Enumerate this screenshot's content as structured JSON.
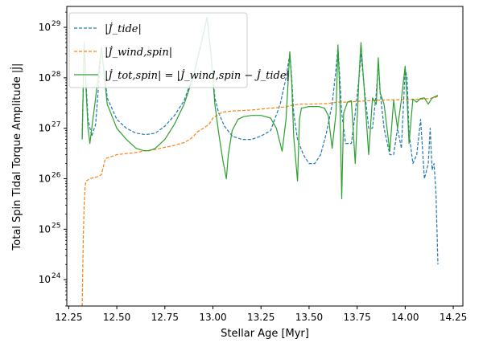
{
  "chart_data": {
    "type": "line",
    "xlabel": "Stellar Age [Myr]",
    "ylabel": "Total Spin Tidal Torque Amplitude |J̇|",
    "xlim": [
      12.24,
      14.3
    ],
    "ylim": [
      3e+23,
      2.6e+29
    ],
    "yscale": "log",
    "grid": false,
    "legend_position": "top-left",
    "xticks": [
      {
        "value": 12.25,
        "label": "12.25"
      },
      {
        "value": 12.5,
        "label": "12.50"
      },
      {
        "value": 12.75,
        "label": "12.75"
      },
      {
        "value": 13.0,
        "label": "13.00"
      },
      {
        "value": 13.25,
        "label": "13.25"
      },
      {
        "value": 13.5,
        "label": "13.50"
      },
      {
        "value": 13.75,
        "label": "13.75"
      },
      {
        "value": 14.0,
        "label": "14.00"
      },
      {
        "value": 14.25,
        "label": "14.25"
      }
    ],
    "yticks": [
      {
        "value": 1e+24,
        "base": "10",
        "exp": "24"
      },
      {
        "value": 1e+25,
        "base": "10",
        "exp": "25"
      },
      {
        "value": 1e+26,
        "base": "10",
        "exp": "26"
      },
      {
        "value": 1e+27,
        "base": "10",
        "exp": "27"
      },
      {
        "value": 1e+28,
        "base": "10",
        "exp": "28"
      },
      {
        "value": 1e+29,
        "base": "10",
        "exp": "29"
      }
    ],
    "series": [
      {
        "name": "|J̇_tide|",
        "color": "#1f77b4",
        "dash": "dashed",
        "x": [
          12.32,
          12.33,
          12.34,
          12.35,
          12.37,
          12.39,
          12.42,
          12.45,
          12.5,
          12.55,
          12.6,
          12.65,
          12.7,
          12.75,
          12.8,
          12.85,
          12.9,
          12.94,
          12.97,
          12.99,
          13.01,
          13.03,
          13.06,
          13.1,
          13.15,
          13.2,
          13.25,
          13.3,
          13.35,
          13.38,
          13.4,
          13.41,
          13.42,
          13.44,
          13.47,
          13.5,
          13.53,
          13.56,
          13.59,
          13.62,
          13.64,
          13.65,
          13.66,
          13.67,
          13.69,
          13.72,
          13.74,
          13.76,
          13.77,
          13.79,
          13.81,
          13.83,
          13.85,
          13.86,
          13.87,
          13.89,
          13.92,
          13.94,
          13.96,
          13.98,
          14.0,
          14.01,
          14.02,
          14.04,
          14.06,
          14.08,
          14.1,
          14.12,
          14.13,
          14.14,
          14.15,
          14.16,
          14.17
        ],
        "y": [
          7e+26,
          5e+28,
          8e+27,
          1.5e+27,
          7e+26,
          1.2e+27,
          4e+28,
          4e+27,
          1.5e+27,
          1e+27,
          8e+26,
          7.5e+26,
          8e+26,
          1.1e+27,
          1.8e+27,
          3.5e+27,
          1.2e+28,
          5e+28,
          1.6e+29,
          3e+28,
          4e+27,
          2e+27,
          1.1e+27,
          7e+26,
          6e+26,
          6e+26,
          7e+26,
          9e+26,
          3e+27,
          1e+28,
          3e+28,
          1e+28,
          2e+27,
          6e+26,
          3e+26,
          2e+26,
          2e+26,
          3e+26,
          8e+26,
          3e+27,
          1.5e+28,
          4e+28,
          1e+28,
          2e+27,
          5e+26,
          5e+26,
          2e+27,
          1e+28,
          3e+28,
          5e+27,
          1e+27,
          1e+27,
          5e+27,
          2e+28,
          5e+27,
          1e+27,
          3e+26,
          3e+26,
          1e+27,
          4e+26,
          1.5e+28,
          1e+28,
          8e+26,
          2e+26,
          3e+26,
          1.5e+27,
          1e+26,
          2e+26,
          1e+27,
          1.5e+26,
          2e+26,
          5e+25,
          2e+24
        ]
      },
      {
        "name": "|J̇_wind,spin|",
        "color": "#ff7f0e",
        "dash": "dashed",
        "x": [
          12.32,
          12.325,
          12.33,
          12.335,
          12.34,
          12.36,
          12.38,
          12.4,
          12.42,
          12.44,
          12.5,
          12.6,
          12.65,
          12.7,
          12.75,
          12.8,
          12.85,
          12.88,
          12.9,
          12.92,
          12.95,
          12.98,
          13.0,
          13.05,
          13.1,
          13.2,
          13.25,
          13.3,
          13.35,
          13.38,
          13.4,
          13.45,
          13.5,
          13.6,
          13.65,
          13.7,
          13.75,
          13.8,
          13.85,
          13.9,
          14.0,
          14.05,
          14.1,
          14.15,
          14.17
        ],
        "y": [
          3e+23,
          5e+24,
          3e+25,
          7e+25,
          9e+25,
          1e+26,
          1.05e+26,
          1.1e+26,
          1.2e+26,
          2.5e+26,
          3e+26,
          3.3e+26,
          3.6e+26,
          3.8e+26,
          4.2e+26,
          4.6e+26,
          5.2e+26,
          6e+26,
          7e+26,
          8.5e+26,
          1e+27,
          1.2e+27,
          1.6e+27,
          2.1e+27,
          2.2e+27,
          2.3e+27,
          2.4e+27,
          2.5e+27,
          2.6e+27,
          2.65e+27,
          2.8e+27,
          3e+27,
          3e+27,
          3.1e+27,
          3.3e+27,
          3.3e+27,
          3.4e+27,
          3.5e+27,
          3.6e+27,
          3.65e+27,
          3.7e+27,
          3.75e+27,
          3.8e+27,
          4e+27,
          4.3e+27
        ]
      },
      {
        "name": "|J̇_tot,spin| = |J̇_wind,spin − J̇_tide|",
        "color": "#2ca02c",
        "dash": "solid",
        "x": [
          12.32,
          12.33,
          12.34,
          12.35,
          12.36,
          12.37,
          12.39,
          12.42,
          12.45,
          12.5,
          12.55,
          12.6,
          12.64,
          12.67,
          12.7,
          12.75,
          12.8,
          12.85,
          12.9,
          12.94,
          12.97,
          12.99,
          13.01,
          13.03,
          13.05,
          13.07,
          13.08,
          13.1,
          13.13,
          13.16,
          13.2,
          13.25,
          13.3,
          13.33,
          13.36,
          13.38,
          13.4,
          13.41,
          13.42,
          13.44,
          13.45,
          13.46,
          13.5,
          13.55,
          13.58,
          13.6,
          13.62,
          13.64,
          13.65,
          13.66,
          13.67,
          13.68,
          13.7,
          13.72,
          13.74,
          13.76,
          13.77,
          13.79,
          13.81,
          13.83,
          13.85,
          13.86,
          13.87,
          13.89,
          13.92,
          13.94,
          13.96,
          13.98,
          14.0,
          14.01,
          14.02,
          14.04,
          14.06,
          14.08,
          14.1,
          14.12,
          14.14,
          14.17
        ],
        "y": [
          6e+26,
          5e+28,
          6e+27,
          1e+27,
          5e+26,
          1e+27,
          4e+27,
          4e+28,
          3e+27,
          1e+27,
          6e+26,
          4e+26,
          3.6e+26,
          3.6e+26,
          4e+26,
          6e+26,
          1.2e+27,
          3e+27,
          1.1e+28,
          5e+28,
          1.6e+29,
          3e+28,
          3e+27,
          8e+26,
          2.5e+26,
          1e+26,
          3e+26,
          9e+26,
          1.5e+27,
          1.7e+27,
          1.8e+27,
          1.8e+27,
          1.6e+27,
          1e+27,
          3.5e+26,
          1.5e+27,
          3.3e+28,
          8e+27,
          7e+26,
          9e+25,
          1.5e+27,
          2.5e+27,
          2.7e+27,
          2.7e+27,
          2.5e+27,
          1.8e+27,
          4e+26,
          2e+27,
          4.5e+28,
          5e+27,
          4e+25,
          2e+27,
          3.3e+27,
          3.5e+27,
          2e+26,
          1.1e+28,
          5e+28,
          4e+27,
          3e+26,
          4e+27,
          3e+27,
          2.5e+28,
          5e+27,
          3e+27,
          3.5e+26,
          3.6e+27,
          1e+27,
          3.7e+27,
          1.7e+28,
          3.7e+27,
          5e+26,
          3.8e+27,
          3.3e+27,
          3.9e+27,
          4e+27,
          3e+27,
          4e+27,
          4.5e+27
        ]
      }
    ]
  }
}
